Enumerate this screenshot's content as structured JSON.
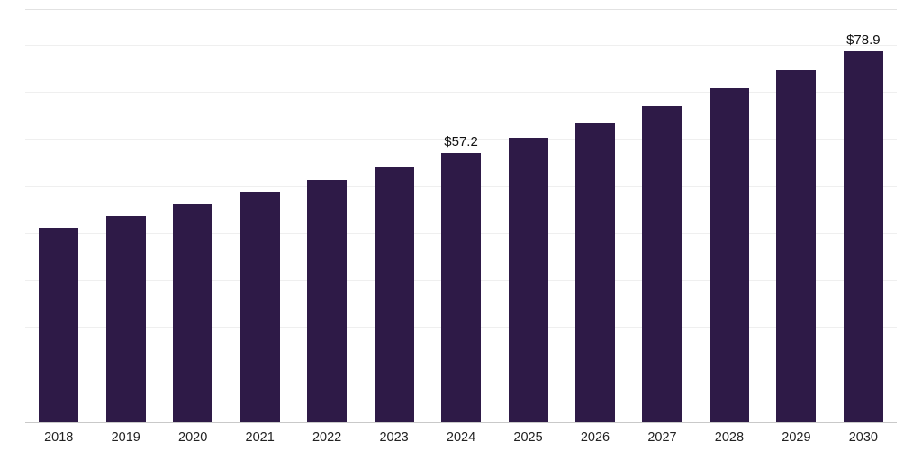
{
  "chart_data": {
    "type": "bar",
    "title": "",
    "xlabel": "",
    "ylabel": "",
    "categories": [
      "2018",
      "2019",
      "2020",
      "2021",
      "2022",
      "2023",
      "2024",
      "2025",
      "2026",
      "2027",
      "2028",
      "2029",
      "2030"
    ],
    "values": [
      41.3,
      43.8,
      46.3,
      48.9,
      51.5,
      54.3,
      57.2,
      60.4,
      63.6,
      67.1,
      71.0,
      74.8,
      78.9
    ],
    "data_labels": [
      "",
      "",
      "",
      "",
      "",
      "",
      "$57.2",
      "",
      "",
      "",
      "",
      "",
      "$78.9"
    ],
    "ylim": [
      0,
      88
    ],
    "grid_step": 10,
    "grid": true,
    "legend": false,
    "bar_color": "#2e1a47",
    "gridline_color": "#efefef",
    "axis_color": "#c9c9c9"
  }
}
